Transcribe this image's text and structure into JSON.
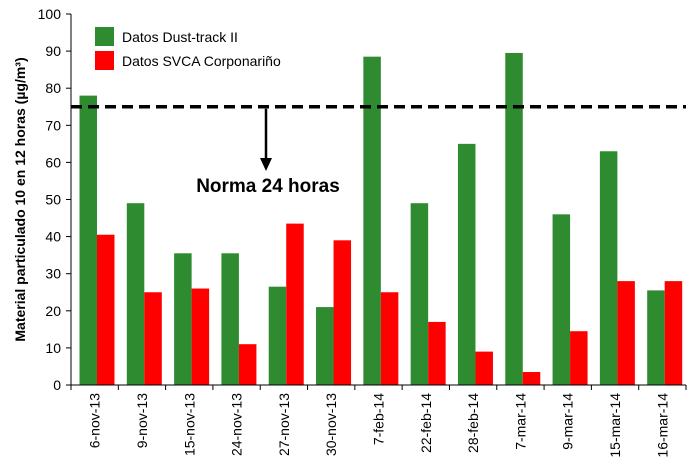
{
  "chart_data": {
    "type": "bar",
    "title": "",
    "xlabel": "",
    "ylabel": "Material particulado 10 en 12 horas (µg/m³)",
    "ylim": [
      0,
      100
    ],
    "yticks": [
      0,
      10,
      20,
      30,
      40,
      50,
      60,
      70,
      80,
      90,
      100
    ],
    "grid": false,
    "legend_position": "top-left",
    "categories": [
      "6-nov-13",
      "9-nov-13",
      "15-nov-13",
      "24-nov-13",
      "27-nov-13",
      "30-nov-13",
      "7-feb-14",
      "22-feb-14",
      "28-feb-14",
      "7-mar-14",
      "9-mar-14",
      "15-mar-14",
      "16-mar-14"
    ],
    "series": [
      {
        "name": "Datos Dust-track II",
        "color": "#2e8b30",
        "values": [
          78,
          49,
          35.5,
          35.5,
          26.5,
          21,
          88.5,
          49,
          65,
          89.5,
          46,
          63,
          25.5
        ]
      },
      {
        "name": "Datos SVCA Corponariño",
        "color": "#ff0000",
        "values": [
          40.5,
          25,
          26,
          11,
          43.5,
          39,
          25,
          17,
          9,
          3.5,
          14.5,
          28,
          28
        ]
      }
    ],
    "reference_line": {
      "value": 75,
      "style": "dashed",
      "color": "#000000"
    },
    "annotation": {
      "text": "Norma 24 horas"
    }
  }
}
